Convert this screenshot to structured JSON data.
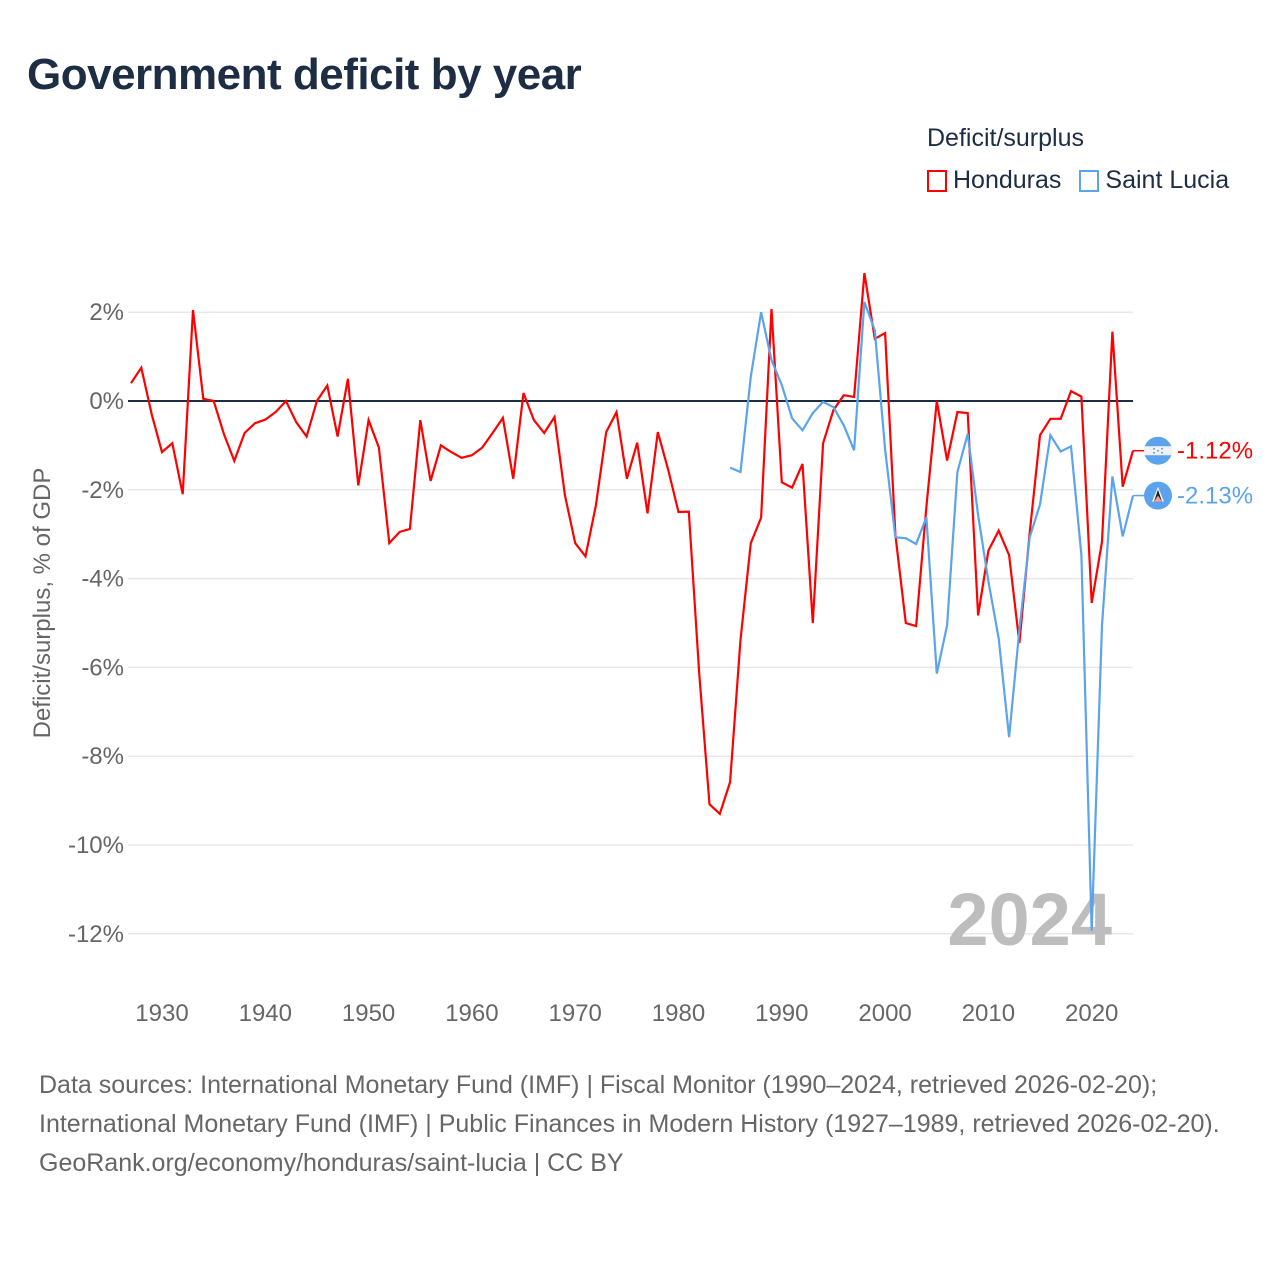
{
  "title": "Government deficit by year",
  "legend": {
    "title": "Deficit/surplus",
    "items": [
      {
        "label": "Honduras",
        "color": "#ff0000"
      },
      {
        "label": "Saint Lucia",
        "color": "#5ba3ec"
      }
    ]
  },
  "footer": {
    "sources": "Data sources: International Monetary Fund (IMF) | Fiscal Monitor (1990–2024, retrieved 2026-02-20); International Monetary Fund (IMF) | Public Finances in Modern History (1927–1989, retrieved 2026-02-20).",
    "credit": "GeoRank.org/economy/honduras/saint-lucia | CC BY"
  },
  "chart_data": {
    "type": "line",
    "title": "Government deficit by year",
    "xlabel": "",
    "ylabel": "Deficit/surplus, % of GDP",
    "xlim": [
      1927,
      2024
    ],
    "ylim": [
      -13,
      3
    ],
    "x_ticks": [
      1930,
      1940,
      1950,
      1960,
      1970,
      1980,
      1990,
      2000,
      2010,
      2020
    ],
    "y_ticks": [
      2,
      0,
      -2,
      -4,
      -6,
      -8,
      -10,
      -12
    ],
    "y_tick_labels": [
      "2%",
      "0%",
      "-2%",
      "-4%",
      "-6%",
      "-8%",
      "-10%",
      "-12%"
    ],
    "grid": true,
    "legend_position": "top-right",
    "year_watermark": "2024",
    "series": [
      {
        "name": "Honduras",
        "color": "#ff0000",
        "start_year": 1927,
        "end_label": "-1.12%",
        "flag_icon": "honduras-flag-icon",
        "values": [
          0.4,
          0.75,
          -0.3,
          -1.15,
          -0.95,
          -2.1,
          2.05,
          0.05,
          0,
          -0.75,
          -1.35,
          -0.72,
          -0.5,
          -0.42,
          -0.25,
          0,
          -0.48,
          -0.8,
          0,
          0.35,
          -0.8,
          0.5,
          -1.9,
          -0.43,
          -1.05,
          -3.2,
          -2.95,
          -2.88,
          -0.43,
          -1.8,
          -1,
          -1.15,
          -1.28,
          -1.22,
          -1.05,
          -0.72,
          -0.38,
          -1.75,
          0.18,
          -0.43,
          -0.72,
          -0.36,
          -2.12,
          -3.2,
          -3.5,
          -2.35,
          -0.7,
          -0.25,
          -1.75,
          -0.94,
          -2.53,
          -0.7,
          -1.55,
          -2.5,
          -2.49,
          -6.13,
          -9.08,
          -9.3,
          -8.58,
          -5.38,
          -3.2,
          -2.63,
          2.07,
          -1.83,
          -1.95,
          -1.42,
          -5.0,
          -0.95,
          -0.2,
          0.13,
          0.09,
          2.88,
          1.4,
          1.53,
          -3.02,
          -5.0,
          -5.07,
          -2.38,
          0,
          -1.34,
          -0.25,
          -0.27,
          -4.83,
          -3.37,
          -2.92,
          -3.47,
          -5.45,
          -2.97,
          -0.77,
          -0.4,
          -0.4,
          0.22,
          0.1,
          -4.55,
          -3.17,
          1.56,
          -1.93,
          -1.12
        ]
      },
      {
        "name": "Saint Lucia",
        "color": "#5ba3ec",
        "start_year": 1985,
        "end_label": "-2.13%",
        "flag_icon": "saint-lucia-flag-icon",
        "values": [
          -1.5,
          -1.6,
          0.55,
          2.0,
          0.92,
          0.36,
          -0.39,
          -0.66,
          -0.27,
          -0.02,
          -0.14,
          -0.55,
          -1.11,
          2.23,
          1.59,
          -1.09,
          -3.07,
          -3.09,
          -3.22,
          -2.62,
          -6.14,
          -5.05,
          -1.6,
          -0.74,
          -2.57,
          -4.06,
          -5.35,
          -7.57,
          -5.15,
          -3.07,
          -2.33,
          -0.77,
          -1.14,
          -1.02,
          -3.47,
          -11.93,
          -5.05,
          -1.7,
          -3.05,
          -2.13
        ]
      }
    ]
  }
}
